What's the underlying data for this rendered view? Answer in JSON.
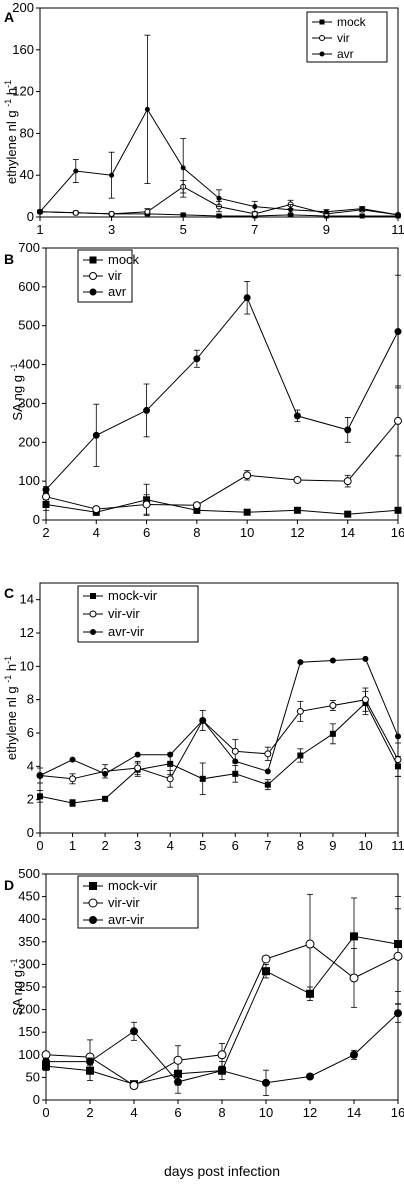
{
  "chart_data": [
    {
      "panel": "A",
      "type": "line",
      "ylabel_main": "ethylene nl g",
      "ylabel_sup1": "-1",
      "ylabel_tail": "h",
      "ylabel_sup2": "-1",
      "xlabel": "",
      "xlim": [
        1,
        11
      ],
      "ylim": [
        0,
        200
      ],
      "xticks": [
        1,
        3,
        5,
        7,
        9,
        11
      ],
      "yticks": [
        0,
        40,
        80,
        120,
        160,
        200
      ],
      "legend_position": "top-right",
      "series": [
        {
          "name": "mock",
          "marker": "square",
          "x": [
            1,
            2,
            3,
            4,
            5,
            6,
            7,
            8,
            9,
            10,
            11
          ],
          "y": [
            5,
            4,
            3,
            3,
            2,
            1,
            1,
            2,
            1,
            1,
            1
          ],
          "err": [
            1,
            1,
            1,
            1,
            1,
            1,
            1,
            1,
            1,
            1,
            1
          ]
        },
        {
          "name": "vir",
          "marker": "open-circle",
          "x": [
            1,
            2,
            3,
            4,
            5,
            6,
            7,
            8,
            9,
            10,
            11
          ],
          "y": [
            5,
            4,
            3,
            5,
            29,
            10,
            3,
            12,
            3,
            7,
            2
          ],
          "err": [
            1,
            1,
            1,
            3,
            6,
            5,
            2,
            4,
            1,
            2,
            1
          ]
        },
        {
          "name": "avr",
          "marker": "dot",
          "x": [
            1,
            2,
            3,
            4,
            5,
            6,
            7,
            8,
            9,
            10,
            11
          ],
          "y": [
            5,
            44,
            40,
            103,
            47,
            18,
            10,
            7,
            5,
            8,
            2
          ],
          "err": [
            1,
            11,
            22,
            71,
            28,
            8,
            5,
            5,
            2,
            2,
            1
          ]
        }
      ]
    },
    {
      "panel": "B",
      "type": "line",
      "ylabel_main": "SA ng g",
      "ylabel_sup1": "-1",
      "xlabel": "",
      "xlim": [
        2,
        16
      ],
      "ylim": [
        0,
        700
      ],
      "xticks": [
        2,
        4,
        6,
        8,
        10,
        12,
        14,
        16
      ],
      "yticks": [
        0,
        100,
        200,
        300,
        400,
        500,
        600,
        700
      ],
      "legend_position": "top-left",
      "series": [
        {
          "name": "mock",
          "marker": "square",
          "x": [
            2,
            4,
            6,
            8,
            10,
            12,
            14,
            16
          ],
          "y": [
            40,
            20,
            52,
            25,
            20,
            25,
            15,
            25
          ],
          "err": [
            15,
            8,
            40,
            8,
            5,
            5,
            5,
            5
          ]
        },
        {
          "name": "vir",
          "marker": "open-circle",
          "x": [
            2,
            4,
            6,
            8,
            10,
            12,
            14,
            16
          ],
          "y": [
            60,
            28,
            40,
            38,
            115,
            103,
            100,
            255
          ],
          "err": [
            8,
            5,
            25,
            5,
            12,
            5,
            15,
            90
          ]
        },
        {
          "name": "avr",
          "marker": "dot",
          "x": [
            2,
            4,
            6,
            8,
            10,
            12,
            14,
            16
          ],
          "y": [
            78,
            218,
            282,
            415,
            572,
            268,
            232,
            485
          ],
          "err": [
            8,
            80,
            68,
            22,
            42,
            15,
            32,
            145
          ]
        }
      ]
    },
    {
      "panel": "C",
      "type": "line",
      "ylabel_main": "ethylene nl g",
      "ylabel_sup1": "-1",
      "ylabel_tail": "h",
      "ylabel_sup2": "-1",
      "xlabel": "",
      "xlim": [
        0,
        11
      ],
      "ylim": [
        0,
        15
      ],
      "xticks": [
        0,
        1,
        2,
        3,
        4,
        5,
        6,
        7,
        8,
        9,
        10,
        11
      ],
      "yticks": [
        0,
        2,
        4,
        6,
        8,
        10,
        12,
        14
      ],
      "legend_position": "top-left",
      "series": [
        {
          "name": "mock-vir",
          "marker": "square",
          "x": [
            0,
            1,
            2,
            3,
            4,
            5,
            6,
            7,
            8,
            9,
            10,
            11
          ],
          "y": [
            2.2,
            1.8,
            2.05,
            3.8,
            4.15,
            3.25,
            3.55,
            2.9,
            4.65,
            5.95,
            7.8,
            4.0
          ],
          "err": [
            0.35,
            0.2,
            0.1,
            0.4,
            0.65,
            0.95,
            0.5,
            0.3,
            0.4,
            0.6,
            0.7,
            0.6
          ]
        },
        {
          "name": "vir-vir",
          "marker": "open-circle",
          "x": [
            0,
            1,
            2,
            3,
            4,
            5,
            6,
            7,
            8,
            9,
            10,
            11
          ],
          "y": [
            3.45,
            3.25,
            3.7,
            3.9,
            3.25,
            6.75,
            4.9,
            4.75,
            7.3,
            7.65,
            8.0,
            4.4
          ],
          "err": [
            0.45,
            0.3,
            0.4,
            0.4,
            0.5,
            0.6,
            0.7,
            0.4,
            0.6,
            0.3,
            0.7,
            1.0
          ]
        },
        {
          "name": "avr-vir",
          "marker": "dot",
          "x": [
            0,
            1,
            2,
            3,
            4,
            5,
            6,
            7,
            8,
            9,
            10,
            11
          ],
          "y": [
            3.45,
            4.4,
            3.55,
            4.7,
            4.7,
            6.75,
            4.3,
            3.7,
            10.25,
            10.35,
            10.45,
            5.8
          ]
        }
      ]
    },
    {
      "panel": "D",
      "type": "line",
      "ylabel_main": "SA ng g",
      "ylabel_sup1": "-1",
      "xlabel": "days post infection",
      "xlim": [
        0,
        16
      ],
      "ylim": [
        0,
        500
      ],
      "xticks": [
        0,
        2,
        4,
        6,
        8,
        10,
        12,
        14,
        16
      ],
      "yticks": [
        0,
        50,
        100,
        150,
        200,
        250,
        300,
        350,
        400,
        450,
        500
      ],
      "legend_position": "top-left",
      "series": [
        {
          "name": "mock-vir",
          "marker": "square",
          "x": [
            0,
            2,
            4,
            6,
            8,
            10,
            12,
            14,
            16
          ],
          "y": [
            75,
            65,
            35,
            58,
            65,
            285,
            235,
            362,
            345
          ],
          "err": [
            10,
            22,
            5,
            25,
            20,
            15,
            15,
            85,
            105
          ]
        },
        {
          "name": "vir-vir",
          "marker": "open-circle",
          "x": [
            0,
            2,
            4,
            6,
            8,
            10,
            12,
            14,
            16
          ],
          "y": [
            100,
            95,
            32,
            88,
            100,
            312,
            345,
            270,
            318
          ],
          "err": [
            5,
            38,
            5,
            32,
            25,
            5,
            110,
            65,
            105
          ]
        },
        {
          "name": "avr-vir",
          "marker": "dot",
          "x": [
            0,
            2,
            4,
            6,
            8,
            10,
            12,
            14,
            16
          ],
          "y": [
            85,
            85,
            152,
            40,
            65,
            38,
            52,
            100,
            192
          ],
          "err": [
            8,
            8,
            20,
            25,
            8,
            28,
            3,
            10,
            20
          ]
        }
      ]
    }
  ]
}
